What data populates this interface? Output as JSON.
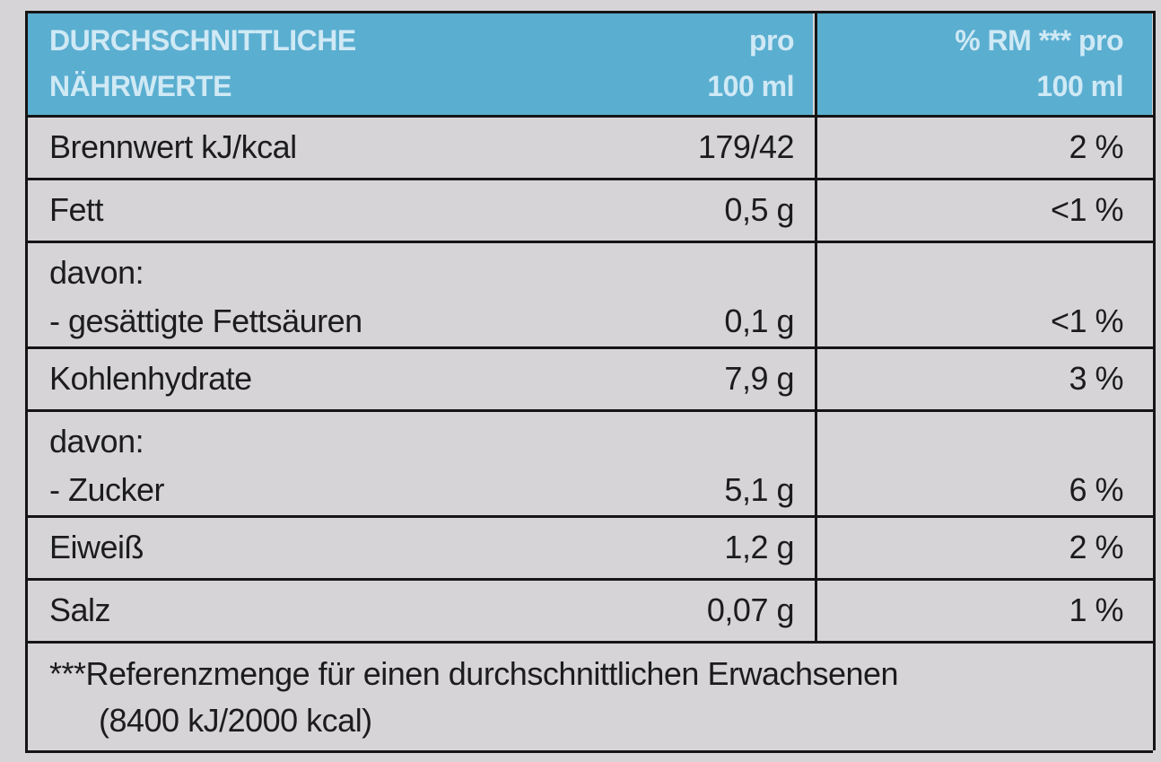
{
  "header": [
    {
      "lines": [
        "DURCHSCHNITTLICHE",
        "NÄHRWERTE"
      ]
    },
    {
      "lines": [
        "pro",
        "100 ml"
      ]
    },
    {
      "lines": [
        "% RM *** pro",
        "100 ml"
      ]
    }
  ],
  "rows": [
    {
      "label": [
        "Brennwert kJ/kcal"
      ],
      "per100": "179/42",
      "rm": "2 %"
    },
    {
      "label": [
        "Fett"
      ],
      "per100": "0,5 g",
      "rm": "<1 %"
    },
    {
      "label": [
        "davon:",
        "- gesättigte Fettsäuren"
      ],
      "per100": "0,1 g",
      "rm": "<1 %"
    },
    {
      "label": [
        "Kohlenhydrate"
      ],
      "per100": "7,9 g",
      "rm": "3 %"
    },
    {
      "label": [
        "davon:",
        "- Zucker"
      ],
      "per100": "5,1 g",
      "rm": "6 %"
    },
    {
      "label": [
        "Eiweiß"
      ],
      "per100": "1,2 g",
      "rm": "2 %"
    },
    {
      "label": [
        "Salz"
      ],
      "per100": "0,07 g",
      "rm": "1 %"
    }
  ],
  "footnote": [
    "***Referenzmenge für einen durchschnittlichen Erwachsenen",
    "(8400 kJ/2000 kcal)"
  ]
}
